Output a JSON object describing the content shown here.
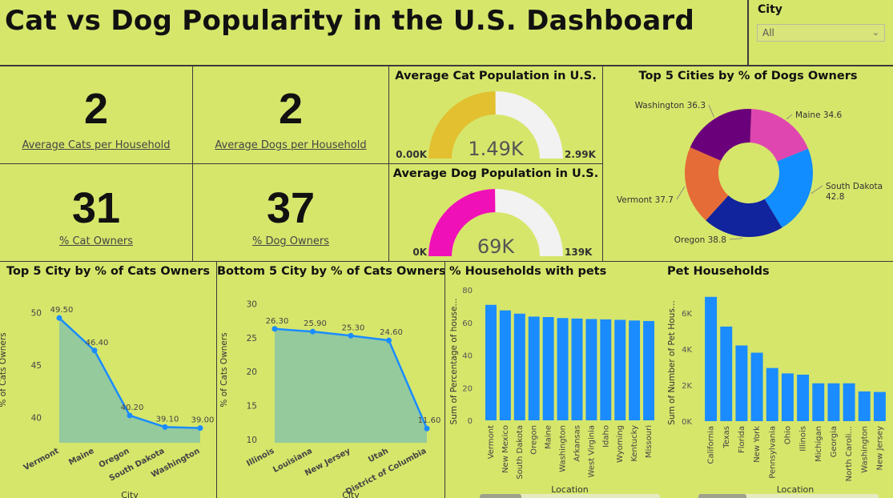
{
  "header": {
    "title": "Cat vs Dog Popularity in the U.S. Dashboard"
  },
  "slicer": {
    "label": "City",
    "value": "All"
  },
  "kpis": {
    "avg_cats": {
      "value": "2",
      "label": "Average Cats per Household"
    },
    "avg_dogs": {
      "value": "2",
      "label": "Average Dogs per Household"
    },
    "cat_owners": {
      "value": "31",
      "label": "% Cat Owners"
    },
    "dog_owners": {
      "value": "37",
      "label": "% Dog Owners"
    }
  },
  "colors": {
    "background": "#d6e66b",
    "accent_bar": "#1a8cff",
    "cat_gauge": "#e2c02f",
    "dog_gauge": "#f010b8",
    "area_fill": "#8ec7a3",
    "line": "#1a8cff"
  },
  "chart_data": [
    {
      "id": "cat_gauge",
      "type": "gauge",
      "title": "Average Cat Population in U.S.",
      "value": 1490,
      "min": 0,
      "max": 2990,
      "value_label": "1.49K",
      "min_label": "0.00K",
      "max_label": "2.99K"
    },
    {
      "id": "dog_gauge",
      "type": "gauge",
      "title": "Average Dog Population in U.S.",
      "value": 69000,
      "min": 0,
      "max": 139000,
      "value_label": "69K",
      "min_label": "0K",
      "max_label": "139K"
    },
    {
      "id": "dog_donut",
      "type": "pie",
      "title": "Top 5 Cities by % of Dogs Owners",
      "slices": [
        {
          "label": "Maine 34.6",
          "value": 34.6,
          "color": "#e046b0"
        },
        {
          "label": "South Dakota 42.8",
          "value": 42.8,
          "color": "#118dff"
        },
        {
          "label": "Oregon 38.8",
          "value": 38.8,
          "color": "#12239e"
        },
        {
          "label": "Vermont 37.7",
          "value": 37.7,
          "color": "#e66c37"
        },
        {
          "label": "Washington 36.3",
          "value": 36.3,
          "color": "#6b007b"
        }
      ]
    },
    {
      "id": "top_cats",
      "type": "area",
      "title": "Top 5 City by % of Cats Owners",
      "categories": [
        "Vermont",
        "Maine",
        "Oregon",
        "South Dakota",
        "Washington"
      ],
      "values": [
        49.5,
        46.4,
        40.2,
        39.1,
        39.0
      ],
      "data_labels": [
        "49.50",
        "46.40",
        "40.20",
        "39.10",
        "39.00"
      ],
      "xlabel": "City",
      "ylabel": "% of Cats Owners",
      "yticks": [
        "40",
        "45",
        "50"
      ],
      "ylim": [
        37.6,
        51.5
      ]
    },
    {
      "id": "bottom_cats",
      "type": "area",
      "title": "Bottom 5 City by % of Cats Owners",
      "categories": [
        "Illinois",
        "Louisiana",
        "New Jersey",
        "Utah",
        "District of Columbia"
      ],
      "values": [
        26.3,
        25.9,
        25.3,
        24.6,
        11.6
      ],
      "data_labels": [
        "26.30",
        "25.90",
        "25.30",
        "24.60",
        "11.60"
      ],
      "xlabel": "City",
      "ylabel": "% of Cats Owners",
      "yticks": [
        "10",
        "15",
        "20",
        "25",
        "30"
      ],
      "ylim": [
        9.5,
        31
      ]
    },
    {
      "id": "hh_pets",
      "type": "bar",
      "title": "% Households with pets",
      "categories": [
        "Vermont",
        "New Mexico",
        "South Dakota",
        "Oregon",
        "Maine",
        "Washington",
        "Arkansas",
        "West Virginia",
        "Idaho",
        "Wyoming",
        "Kentucky",
        "Missouri"
      ],
      "values": [
        70.8,
        67.4,
        65.4,
        63.6,
        63.3,
        62.7,
        62.4,
        62.1,
        61.9,
        61.6,
        61.2,
        60.9
      ],
      "xlabel": "Location",
      "ylabel": "Sum of Percentage of house...",
      "yticks": [
        "0",
        "20",
        "40",
        "60",
        "80"
      ],
      "ylim": [
        0,
        80
      ]
    },
    {
      "id": "pet_hh",
      "type": "bar",
      "title": "Pet Households",
      "categories": [
        "California",
        "Texas",
        "Florida",
        "New York",
        "Pennsylvania",
        "Ohio",
        "Illinois",
        "Michigan",
        "Georgia",
        "North Caroli...",
        "Washington",
        "New Jersey"
      ],
      "values": [
        6900,
        5250,
        4200,
        3800,
        2950,
        2650,
        2580,
        2100,
        2100,
        2100,
        1650,
        1620
      ],
      "xlabel": "Location",
      "ylabel": "Sum of Number of Pet Hous...",
      "yticks": [
        "0K",
        "2K",
        "4K",
        "6K"
      ],
      "ylim": [
        0,
        7200
      ]
    }
  ]
}
